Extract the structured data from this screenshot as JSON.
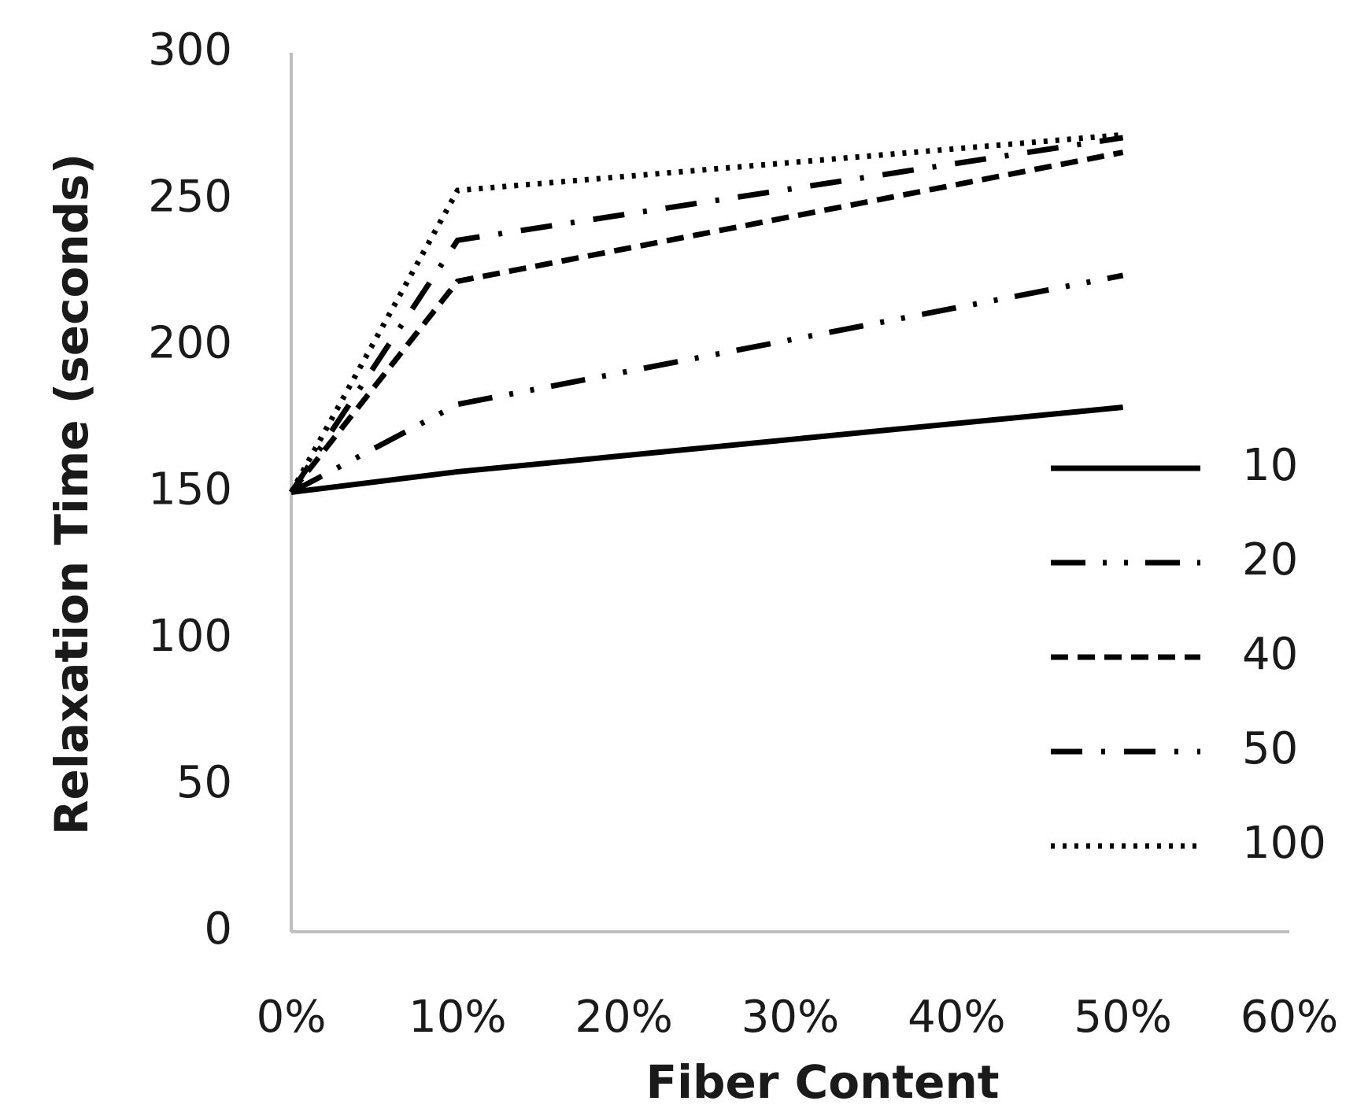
{
  "chart_data": {
    "type": "line",
    "x_label": "Fiber Content",
    "y_label": "Relaxation Time (seconds)",
    "x": [
      0,
      10,
      50
    ],
    "xlim": [
      0,
      60
    ],
    "xticks": [
      {
        "value": 0,
        "label": "0%"
      },
      {
        "value": 10,
        "label": "10%"
      },
      {
        "value": 20,
        "label": "20%"
      },
      {
        "value": 30,
        "label": "30%"
      },
      {
        "value": 40,
        "label": "40%"
      },
      {
        "value": 50,
        "label": "50%"
      },
      {
        "value": 60,
        "label": "60%"
      }
    ],
    "ylim": [
      0,
      300
    ],
    "yticks": [
      0,
      50,
      100,
      150,
      200,
      250,
      300
    ],
    "grid": false,
    "legend": "right",
    "series": [
      {
        "name": "10",
        "color": "#000000",
        "dash": "solid",
        "values": [
          150,
          157,
          179
        ]
      },
      {
        "name": "20",
        "color": "#000000",
        "dash": "long-dash-dot-dot",
        "values": [
          150,
          180,
          224
        ]
      },
      {
        "name": "40",
        "color": "#000000",
        "dash": "dash",
        "values": [
          150,
          222,
          266
        ]
      },
      {
        "name": "50",
        "color": "#000000",
        "dash": "dash-dot",
        "values": [
          150,
          236,
          271
        ]
      },
      {
        "name": "100",
        "color": "#000000",
        "dash": "dot",
        "values": [
          150,
          253,
          272
        ]
      }
    ]
  }
}
